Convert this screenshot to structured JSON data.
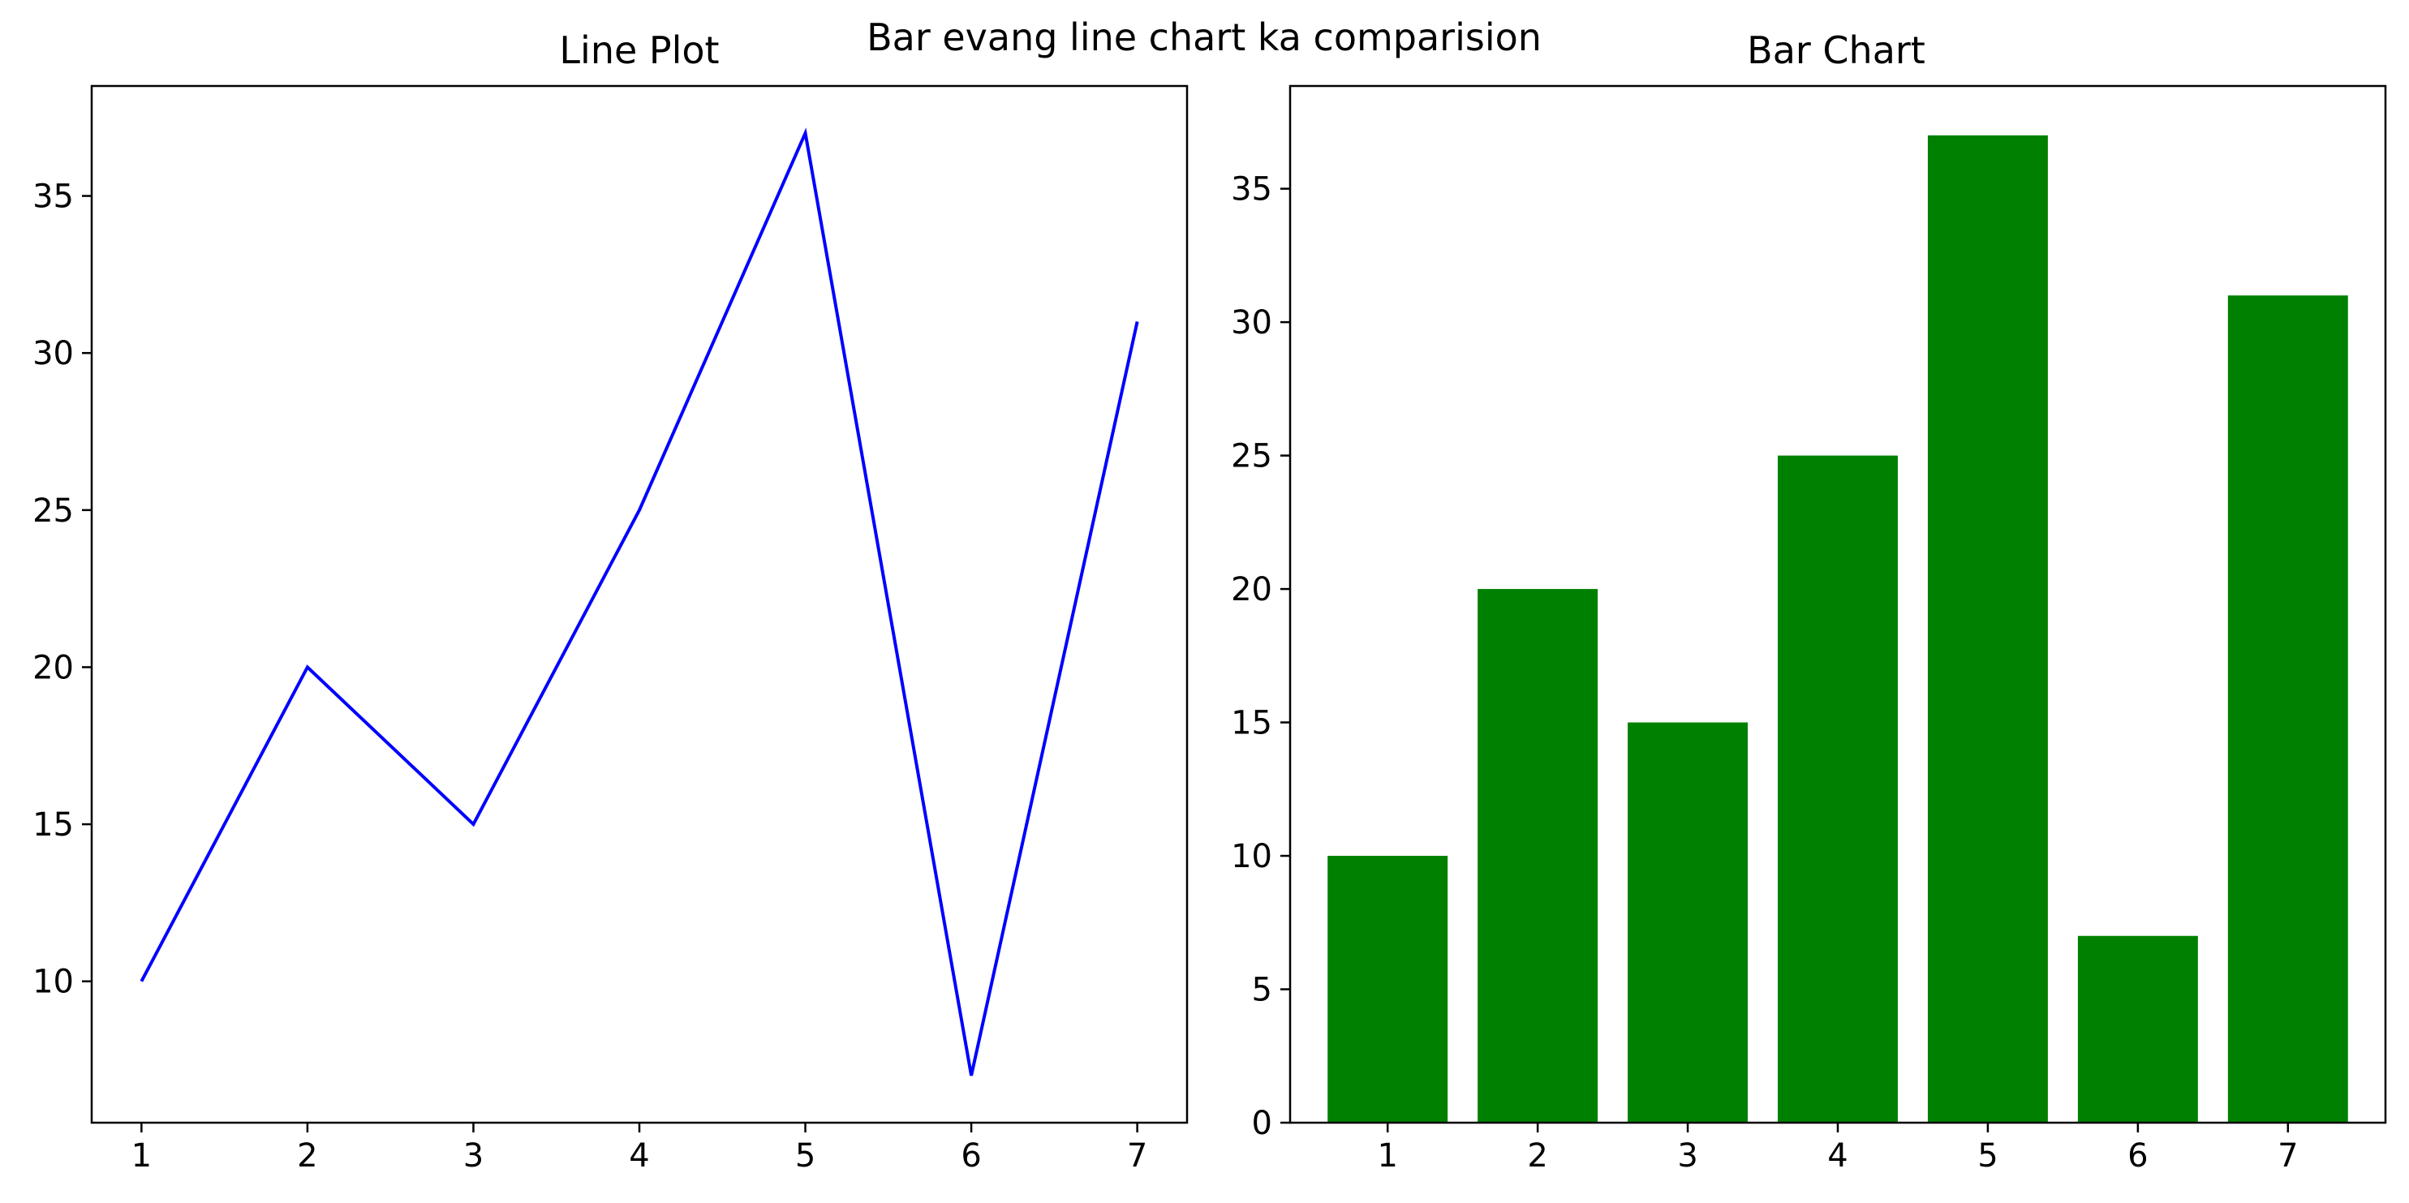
{
  "figure": {
    "suptitle": "Bar evang line chart ka comparision"
  },
  "chart_data": [
    {
      "type": "line",
      "title": "Line Plot",
      "xlabel": "",
      "ylabel": "",
      "x": [
        1,
        2,
        3,
        4,
        5,
        6,
        7
      ],
      "series": [
        {
          "values": [
            10,
            20,
            15,
            25,
            37,
            7,
            31
          ],
          "color": "#0000ff"
        }
      ],
      "xticks": [
        1,
        2,
        3,
        4,
        5,
        6,
        7
      ],
      "yticks": [
        10,
        15,
        20,
        25,
        30,
        35
      ],
      "xlim": [
        0.7,
        7.3
      ],
      "ylim": [
        5.5,
        38.5
      ],
      "grid": false
    },
    {
      "type": "bar",
      "title": "Bar Chart",
      "xlabel": "",
      "ylabel": "",
      "categories": [
        "1",
        "2",
        "3",
        "4",
        "5",
        "6",
        "7"
      ],
      "values": [
        10,
        20,
        15,
        25,
        37,
        7,
        31
      ],
      "color": "#008000",
      "yticks": [
        0,
        5,
        10,
        15,
        20,
        25,
        30,
        35
      ],
      "ylim": [
        0,
        38.85
      ],
      "grid": false
    }
  ]
}
